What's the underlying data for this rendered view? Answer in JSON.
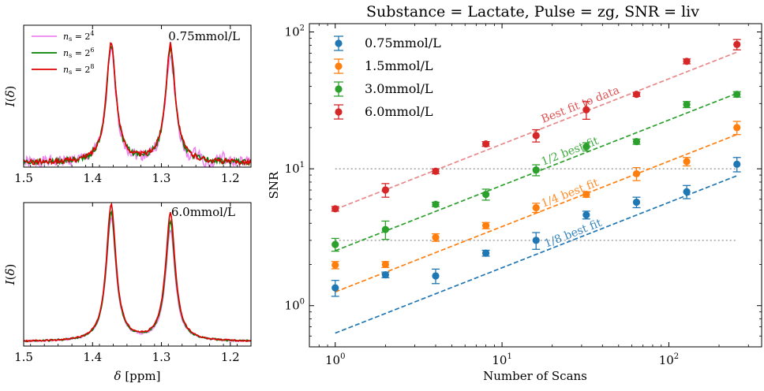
{
  "chart_data": [
    {
      "type": "line",
      "annotation": "0.75mmol/L",
      "ylabel": "I(δ)",
      "xlabel": "",
      "xlim": [
        1.5,
        1.17
      ],
      "xticks": [
        "1.5",
        "1.4",
        "1.3",
        "1.2"
      ],
      "legend": {
        "placement": "top-left",
        "entries": [
          "n_s = 2^4",
          "n_s = 2^6",
          "n_s = 2^8"
        ]
      },
      "series": [
        {
          "name": "n_s = 2^4",
          "color": "#ee82ee",
          "peak_heights": [
            0.78,
            0.75
          ]
        },
        {
          "name": "n_s = 2^6",
          "color": "#008000",
          "peak_heights": [
            0.82,
            0.8
          ]
        },
        {
          "name": "n_s = 2^8",
          "color": "#e00000",
          "peak_heights": [
            0.84,
            0.83
          ]
        }
      ],
      "peaks_ppm": [
        1.373,
        1.287
      ]
    },
    {
      "type": "line",
      "annotation": "6.0mmol/L",
      "ylabel": "I(δ)",
      "xlabel": "δ [ppm]",
      "xlim": [
        1.5,
        1.17
      ],
      "xticks": [
        "1.5",
        "1.4",
        "1.3",
        "1.2"
      ],
      "series": [
        {
          "name": "n_s = 2^4",
          "color": "#ee82ee",
          "peak_heights": [
            0.86,
            0.77
          ]
        },
        {
          "name": "n_s = 2^6",
          "color": "#008000",
          "peak_heights": [
            0.9,
            0.83
          ]
        },
        {
          "name": "n_s = 2^8",
          "color": "#e00000",
          "peak_heights": [
            0.95,
            0.89
          ]
        }
      ],
      "peaks_ppm": [
        1.373,
        1.287
      ]
    },
    {
      "type": "scatter",
      "title": "Substance = Lactate, Pulse = zg, SNR = liv",
      "xlabel": "Number of Scans",
      "ylabel": "SNR",
      "xscale": "log",
      "yscale": "log",
      "xlim": [
        0.7,
        360
      ],
      "ylim": [
        0.5,
        115
      ],
      "xticks": [
        "10^0",
        "10^1",
        "10^2"
      ],
      "yticks": [
        "10^0",
        "10^1",
        "10^2"
      ],
      "legend_placement": "top-left",
      "x": [
        1,
        2,
        4,
        8,
        16,
        32,
        64,
        128,
        256
      ],
      "series": [
        {
          "name": "0.75mmol/L",
          "color": "#1f77b4",
          "values": [
            1.35,
            1.68,
            1.65,
            2.42,
            3.0,
            4.6,
            5.7,
            6.8,
            10.8
          ],
          "errors": [
            0.18,
            0.08,
            0.2,
            0.12,
            0.42,
            0.3,
            0.5,
            0.75,
            1.3
          ],
          "fit": {
            "label": "1/8 best fit",
            "y_start": 0.63,
            "y_end": 8.9
          }
        },
        {
          "name": "1.5mmol/L",
          "color": "#ff7f0e",
          "values": [
            1.98,
            2.0,
            3.15,
            3.85,
            5.2,
            6.5,
            9.2,
            11.3,
            20.0
          ],
          "errors": [
            0.12,
            0.1,
            0.2,
            0.2,
            0.4,
            0.3,
            1.0,
            0.8,
            2.2
          ],
          "fit": {
            "label": "1/4 best fit",
            "y_start": 1.26,
            "y_end": 17.8
          }
        },
        {
          "name": "3.0mmol/L",
          "color": "#2ca02c",
          "values": [
            2.8,
            3.6,
            5.5,
            6.5,
            9.8,
            14.5,
            15.8,
            29.5,
            35.0
          ],
          "errors": [
            0.3,
            0.55,
            0.2,
            0.6,
            0.9,
            1.0,
            0.7,
            1.5,
            1.6
          ],
          "fit": {
            "label": "1/2 best fit",
            "y_start": 2.52,
            "y_end": 35.6
          }
        },
        {
          "name": "6.0mmol/L",
          "color": "#d62728",
          "values": [
            5.1,
            7.0,
            9.6,
            15.2,
            17.5,
            27.0,
            35.0,
            61.0,
            81.0
          ],
          "errors": [
            0.2,
            0.8,
            0.4,
            0.6,
            1.8,
            4.0,
            1.2,
            2.5,
            7.0
          ],
          "fit": {
            "label": "Best fit to data",
            "y_start": 5.05,
            "y_end": 71.2
          }
        }
      ],
      "reference_lines": [
        10,
        3
      ]
    }
  ]
}
